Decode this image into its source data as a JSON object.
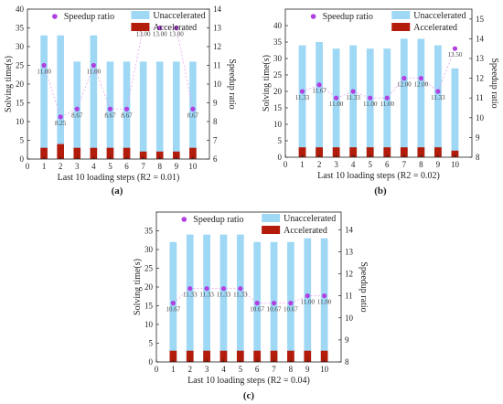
{
  "colors": {
    "unaccelerated": "#9ed8f5",
    "accelerated": "#b31b0a",
    "speedup": "#b040e0",
    "speedup_line": "#e6a3f2"
  },
  "chart_data": [
    {
      "type": "bar",
      "caption": "(a)",
      "xlabel": "Last 10 loading steps (R2 = 0.01)",
      "ylabel": "Solving time(s)",
      "y2label": "Speedup ratio",
      "xlim": [
        0,
        11
      ],
      "ylim": [
        0,
        40
      ],
      "y2lim": [
        6,
        14
      ],
      "xticks": [
        "0",
        "1",
        "2",
        "3",
        "4",
        "5",
        "6",
        "7",
        "8",
        "9",
        "10"
      ],
      "yticks": [
        "0",
        "5",
        "10",
        "15",
        "20",
        "25",
        "30",
        "35",
        "40"
      ],
      "y2ticks": [
        "6",
        "7",
        "8",
        "9",
        "10",
        "11",
        "12",
        "13",
        "14"
      ],
      "categories": [
        1,
        2,
        3,
        4,
        5,
        6,
        7,
        8,
        9,
        10
      ],
      "series": [
        {
          "name": "Unaccelerated",
          "kind": "bar",
          "values": [
            33,
            33,
            26,
            33,
            26,
            26,
            26,
            26,
            26,
            26
          ]
        },
        {
          "name": "Accelerated",
          "kind": "bar",
          "values": [
            3,
            4,
            3,
            3,
            3,
            3,
            2,
            2,
            2,
            3
          ]
        },
        {
          "name": "Speedup ratio",
          "kind": "scatter",
          "values": [
            11.0,
            8.25,
            8.67,
            11.0,
            8.67,
            8.67,
            13.0,
            13.0,
            13.0,
            8.67
          ],
          "labels": [
            "11.00",
            "8.25",
            "8.67",
            "11.00",
            "8.67",
            "8.67",
            "13.00",
            "13.00",
            "13.00",
            "8.67"
          ]
        }
      ],
      "legend": "top"
    },
    {
      "type": "bar",
      "caption": "(b)",
      "xlabel": "Last 10 loading steps (R2 = 0.02)",
      "ylabel": "Solving time(s)",
      "y2label": "Speedup ratio",
      "xlim": [
        0,
        11
      ],
      "ylim": [
        0,
        45
      ],
      "y2lim": [
        8,
        15.5
      ],
      "xticks": [
        "0",
        "1",
        "2",
        "3",
        "4",
        "5",
        "6",
        "7",
        "8",
        "9",
        "10"
      ],
      "yticks": [
        "0",
        "5",
        "10",
        "15",
        "20",
        "25",
        "30",
        "35",
        "40"
      ],
      "y2ticks": [
        "8",
        "9",
        "10",
        "11",
        "12",
        "13",
        "14",
        "15"
      ],
      "categories": [
        1,
        2,
        3,
        4,
        5,
        6,
        7,
        8,
        9,
        10
      ],
      "series": [
        {
          "name": "Unaccelerated",
          "kind": "bar",
          "values": [
            34,
            35,
            33,
            34,
            33,
            33,
            36,
            36,
            34,
            27
          ]
        },
        {
          "name": "Accelerated",
          "kind": "bar",
          "values": [
            3,
            3,
            3,
            3,
            3,
            3,
            3,
            3,
            3,
            2
          ]
        },
        {
          "name": "Speedup ratio",
          "kind": "scatter",
          "values": [
            11.33,
            11.67,
            11.0,
            11.33,
            11.0,
            11.0,
            12.0,
            12.0,
            11.33,
            13.5
          ],
          "labels": [
            "11.33",
            "11.67",
            "11.00",
            "11.33",
            "11.00",
            "11.00",
            "12.00",
            "12.00",
            "11.33",
            "13.50"
          ]
        }
      ],
      "legend": "top"
    },
    {
      "type": "bar",
      "caption": "(c)",
      "xlabel": "Last 10 loading steps (R2 = 0.04)",
      "ylabel": "Solving time(s)",
      "y2label": "Speedup ratio",
      "xlim": [
        0,
        11
      ],
      "ylim": [
        0,
        40
      ],
      "y2lim": [
        8,
        14.8
      ],
      "xticks": [
        "0",
        "1",
        "2",
        "3",
        "4",
        "5",
        "6",
        "7",
        "8",
        "9",
        "10"
      ],
      "yticks": [
        "0",
        "5",
        "10",
        "15",
        "20",
        "25",
        "30",
        "35"
      ],
      "y2ticks": [
        "8",
        "9",
        "10",
        "11",
        "12",
        "13",
        "14"
      ],
      "categories": [
        1,
        2,
        3,
        4,
        5,
        6,
        7,
        8,
        9,
        10
      ],
      "series": [
        {
          "name": "Unaccelerated",
          "kind": "bar",
          "values": [
            32,
            34,
            34,
            34,
            34,
            32,
            32,
            32,
            33,
            33
          ]
        },
        {
          "name": "Accelerated",
          "kind": "bar",
          "values": [
            3,
            3,
            3,
            3,
            3,
            3,
            3,
            3,
            3,
            3
          ]
        },
        {
          "name": "Speedup ratio",
          "kind": "scatter",
          "values": [
            10.67,
            11.33,
            11.33,
            11.33,
            11.33,
            10.67,
            10.67,
            10.67,
            11.0,
            11.0
          ],
          "labels": [
            "10.67",
            "11.33",
            "11.33",
            "11.33",
            "11.33",
            "10.67",
            "10.67",
            "10.67",
            "11.00",
            "11.00"
          ]
        }
      ],
      "legend": "top"
    }
  ]
}
